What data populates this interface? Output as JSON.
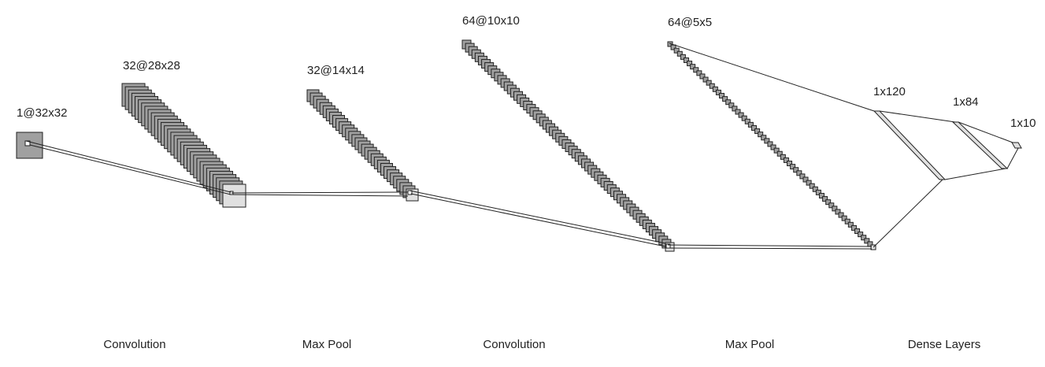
{
  "layers": [
    {
      "label": "1@32x32"
    },
    {
      "label": "32@28x28"
    },
    {
      "label": "32@14x14"
    },
    {
      "label": "64@10x10"
    },
    {
      "label": "64@5x5"
    },
    {
      "label": "1x120"
    },
    {
      "label": "1x84"
    },
    {
      "label": "1x10"
    }
  ],
  "stages": [
    {
      "label": "Convolution"
    },
    {
      "label": "Max Pool"
    },
    {
      "label": "Convolution"
    },
    {
      "label": "Max Pool"
    },
    {
      "label": "Dense Layers"
    }
  ],
  "colors": {
    "map_fill": "#a0a0a0",
    "last_map_fill": "#e0e0e0",
    "dense_fill": "#e0e0e0",
    "stroke": "#222222",
    "text": "#222222"
  }
}
